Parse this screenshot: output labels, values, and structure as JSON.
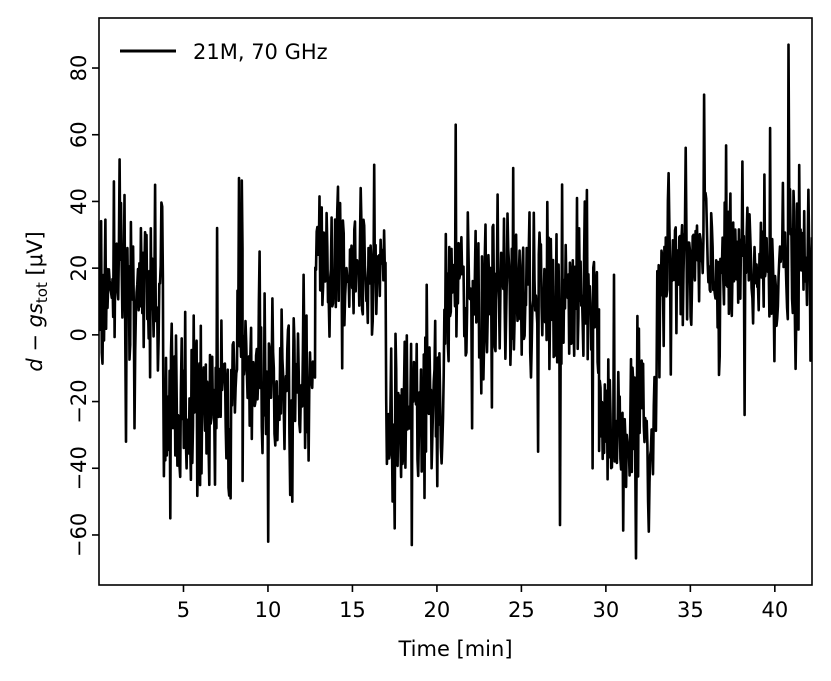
{
  "chart_data": {
    "type": "line",
    "xlabel": "Time [min]",
    "ylabel_parts": {
      "d": "d",
      "minus": " − ",
      "g": "g",
      "s": "s",
      "sub": "tot",
      "unit": " [μV]"
    },
    "xlim": [
      0,
      42.2
    ],
    "ylim": [
      -75,
      95
    ],
    "xticks": [
      5,
      10,
      15,
      20,
      25,
      30,
      35,
      40
    ],
    "xtick_labels": [
      "5",
      "10",
      "15",
      "20",
      "25",
      "30",
      "35",
      "40"
    ],
    "yticks": [
      -60,
      -40,
      -20,
      0,
      20,
      40,
      60,
      80
    ],
    "ytick_labels": [
      "−60",
      "−40",
      "−20",
      "0",
      "20",
      "40",
      "60",
      "80"
    ],
    "legend": {
      "placement": "top-left"
    },
    "series": [
      {
        "name": "21M, 70 GHz",
        "color": "#000000",
        "segments": [
          {
            "x0": 0.0,
            "x1": 3.8,
            "mean": 12,
            "amp": 22,
            "spikes": [
              [
                0.9,
                46
              ],
              [
                1.6,
                -32
              ],
              [
                3.3,
                45
              ],
              [
                2.1,
                -28
              ]
            ]
          },
          {
            "x0": 3.8,
            "x1": 8.2,
            "mean": -22,
            "amp": 20,
            "spikes": [
              [
                4.2,
                -55
              ],
              [
                5.2,
                -40
              ],
              [
                7.0,
                32
              ],
              [
                7.8,
                -49
              ]
            ]
          },
          {
            "x0": 8.2,
            "x1": 8.5,
            "mean": 10,
            "amp": 22,
            "spikes": [
              [
                8.3,
                47
              ]
            ]
          },
          {
            "x0": 8.5,
            "x1": 12.8,
            "mean": -12,
            "amp": 20,
            "spikes": [
              [
                10.0,
                -62
              ],
              [
                11.3,
                -48
              ],
              [
                9.5,
                25
              ],
              [
                12.1,
                18
              ]
            ]
          },
          {
            "x0": 12.8,
            "x1": 17.0,
            "mean": 22,
            "amp": 18,
            "spikes": [
              [
                16.3,
                51
              ],
              [
                14.4,
                -10
              ],
              [
                15.5,
                44
              ]
            ]
          },
          {
            "x0": 17.0,
            "x1": 20.4,
            "mean": -25,
            "amp": 20,
            "spikes": [
              [
                18.5,
                -63
              ],
              [
                17.5,
                -58
              ],
              [
                19.4,
                15
              ]
            ]
          },
          {
            "x0": 20.4,
            "x1": 27.2,
            "mean": 12,
            "amp": 20,
            "spikes": [
              [
                21.1,
                63
              ],
              [
                22.1,
                -28
              ],
              [
                24.5,
                50
              ],
              [
                26.0,
                -35
              ]
            ]
          },
          {
            "x0": 27.2,
            "x1": 29.6,
            "mean": 8,
            "amp": 22,
            "spikes": [
              [
                27.3,
                -57
              ],
              [
                28.3,
                41
              ],
              [
                29.2,
                -40
              ]
            ]
          },
          {
            "x0": 29.6,
            "x1": 33.0,
            "mean": -28,
            "amp": 20,
            "spikes": [
              [
                31.8,
                -67
              ],
              [
                30.5,
                18
              ],
              [
                32.5,
                -50
              ]
            ]
          },
          {
            "x0": 33.0,
            "x1": 42.2,
            "mean": 20,
            "amp": 20,
            "spikes": [
              [
                35.8,
                72
              ],
              [
                40.8,
                87
              ],
              [
                38.2,
                -24
              ],
              [
                39.7,
                62
              ],
              [
                36.7,
                -12
              ]
            ]
          }
        ]
      }
    ]
  }
}
